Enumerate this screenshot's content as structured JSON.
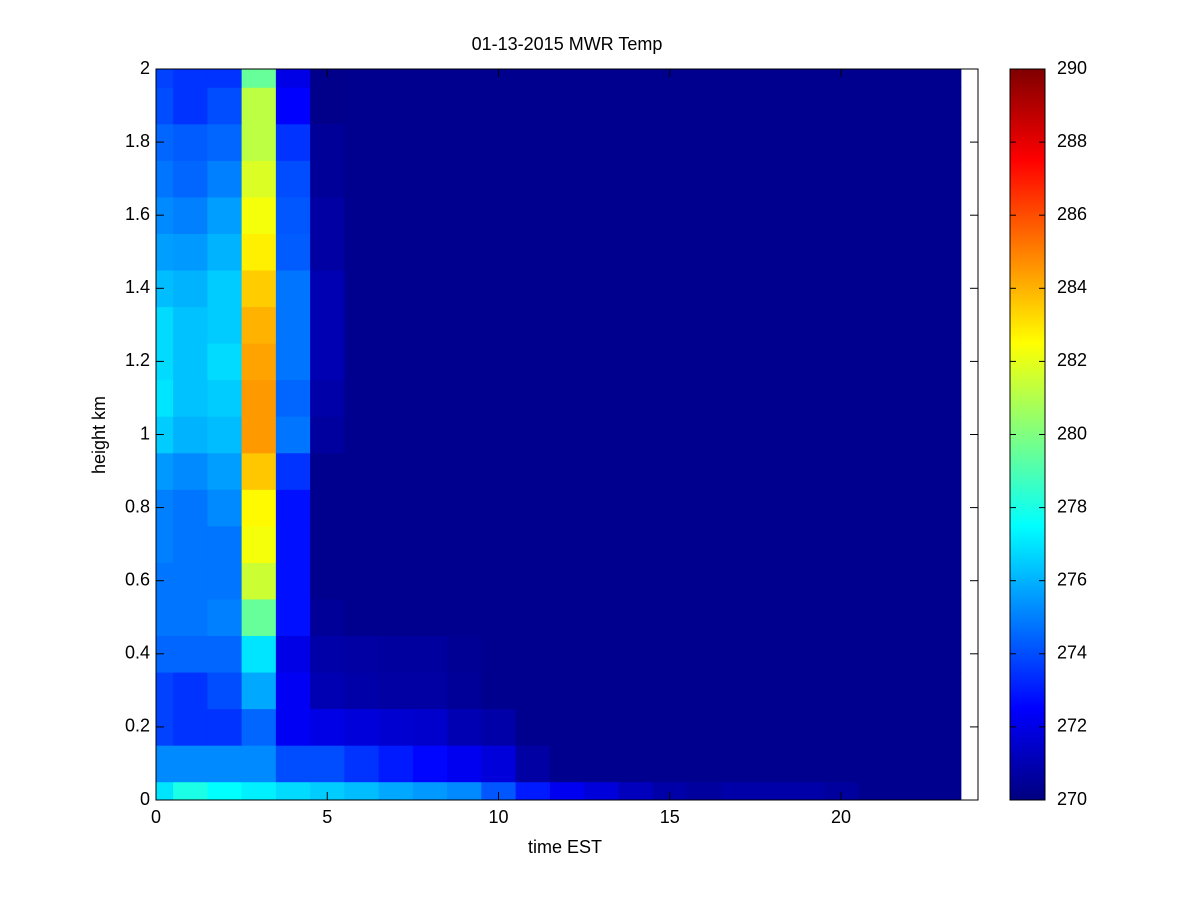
{
  "chart_data": {
    "type": "heatmap",
    "title": "01-13-2015 MWR Temp",
    "xlabel": "time EST",
    "ylabel": "height km",
    "x": [
      0,
      1,
      2,
      3,
      4,
      5,
      6,
      7,
      8,
      9,
      10,
      11,
      12,
      13,
      14,
      15,
      16,
      17,
      18,
      19,
      20,
      21,
      22,
      23
    ],
    "y": [
      0,
      0.1,
      0.2,
      0.3,
      0.4,
      0.5,
      0.6,
      0.7,
      0.8,
      0.9,
      1,
      1.1,
      1.2,
      1.3,
      1.4,
      1.5,
      1.6,
      1.7,
      1.8,
      1.9,
      2
    ],
    "z": [
      [
        277,
        278,
        277.5,
        277.2,
        276.8,
        276.5,
        276.2,
        275.8,
        275.5,
        275.2,
        274.2,
        273,
        272.2,
        271.8,
        271.2,
        270.8,
        270.6,
        270.8,
        270.8,
        270.8,
        270.6,
        270.3,
        270.3,
        270.3
      ],
      [
        275.2,
        275.2,
        275.2,
        275.2,
        274,
        274,
        273.5,
        273,
        272.6,
        272.2,
        271.8,
        270.7,
        270.3,
        270.3,
        270.3,
        270.3,
        270.3,
        270.3,
        270.3,
        270.3,
        270.3,
        270.3,
        270.3,
        270.3
      ],
      [
        273.8,
        273.5,
        273.5,
        274.5,
        272.3,
        272,
        271.8,
        271.6,
        271.5,
        271,
        270.8,
        270.3,
        270.3,
        270.3,
        270.3,
        270.3,
        270.3,
        270.3,
        270.3,
        270.3,
        270.3,
        270.3,
        270.3,
        270.3
      ],
      [
        273.8,
        273.5,
        274,
        275.8,
        272.3,
        271,
        270.8,
        270.7,
        270.7,
        270.5,
        270.3,
        270.3,
        270.3,
        270.3,
        270.3,
        270.3,
        270.3,
        270.3,
        270.3,
        270.3,
        270.3,
        270.3,
        270.3,
        270.3
      ],
      [
        274.5,
        274.5,
        274.5,
        277,
        272,
        270.8,
        270.7,
        270.6,
        270.6,
        270.4,
        270.3,
        270.3,
        270.3,
        270.3,
        270.3,
        270.3,
        270.3,
        270.3,
        270.3,
        270.3,
        270.3,
        270.3,
        270.3,
        270.3
      ],
      [
        274.8,
        274.8,
        275,
        279.5,
        272.8,
        270.5,
        270.3,
        270.3,
        270.3,
        270.3,
        270.3,
        270.3,
        270.3,
        270.3,
        270.3,
        270.3,
        270.3,
        270.3,
        270.3,
        270.3,
        270.3,
        270.3,
        270.3,
        270.3
      ],
      [
        274.8,
        274.8,
        274.8,
        281.5,
        272.8,
        270.3,
        270.3,
        270.3,
        270.3,
        270.3,
        270.3,
        270.3,
        270.3,
        270.3,
        270.3,
        270.3,
        270.3,
        270.3,
        270.3,
        270.3,
        270.3,
        270.3,
        270.3,
        270.3
      ],
      [
        275,
        274.8,
        274.8,
        282.3,
        272.8,
        270.3,
        270.3,
        270.3,
        270.3,
        270.3,
        270.3,
        270.3,
        270.3,
        270.3,
        270.3,
        270.3,
        270.3,
        270.3,
        270.3,
        270.3,
        270.3,
        270.3,
        270.3,
        270.3
      ],
      [
        275,
        274.8,
        275.2,
        282.6,
        272.8,
        270.3,
        270.3,
        270.3,
        270.3,
        270.3,
        270.3,
        270.3,
        270.3,
        270.3,
        270.3,
        270.3,
        270.3,
        270.3,
        270.3,
        270.3,
        270.3,
        270.3,
        270.3,
        270.3
      ],
      [
        275.5,
        275.2,
        275.6,
        283.6,
        273.5,
        270.3,
        270.3,
        270.3,
        270.3,
        270.3,
        270.3,
        270.3,
        270.3,
        270.3,
        270.3,
        270.3,
        270.3,
        270.3,
        270.3,
        270.3,
        270.3,
        270.3,
        270.3,
        270.3
      ],
      [
        276.5,
        276,
        276.2,
        284.5,
        274.8,
        270.6,
        270.3,
        270.3,
        270.3,
        270.3,
        270.3,
        270.3,
        270.3,
        270.3,
        270.3,
        270.3,
        270.3,
        270.3,
        270.3,
        270.3,
        270.3,
        270.3,
        270.3,
        270.3
      ],
      [
        277,
        276.3,
        276.5,
        284.5,
        274.5,
        270.8,
        270.3,
        270.3,
        270.3,
        270.3,
        270.3,
        270.3,
        270.3,
        270.3,
        270.3,
        270.3,
        270.3,
        270.3,
        270.3,
        270.3,
        270.3,
        270.3,
        270.3,
        270.3
      ],
      [
        276.8,
        276.3,
        276.8,
        284.3,
        274.8,
        271,
        270.3,
        270.3,
        270.3,
        270.3,
        270.3,
        270.3,
        270.3,
        270.3,
        270.3,
        270.3,
        270.3,
        270.3,
        270.3,
        270.3,
        270.3,
        270.3,
        270.3,
        270.3
      ],
      [
        276.8,
        276.3,
        276.5,
        284,
        274.8,
        271,
        270.3,
        270.3,
        270.3,
        270.3,
        270.3,
        270.3,
        270.3,
        270.3,
        270.3,
        270.3,
        270.3,
        270.3,
        270.3,
        270.3,
        270.3,
        270.3,
        270.3,
        270.3
      ],
      [
        276.2,
        276,
        276.5,
        283.5,
        274.8,
        271,
        270.3,
        270.3,
        270.3,
        270.3,
        270.3,
        270.3,
        270.3,
        270.3,
        270.3,
        270.3,
        270.3,
        270.3,
        270.3,
        270.3,
        270.3,
        270.3,
        270.3,
        270.3
      ],
      [
        275.6,
        275.5,
        276,
        282.8,
        274.3,
        270.7,
        270.3,
        270.3,
        270.3,
        270.3,
        270.3,
        270.3,
        270.3,
        270.3,
        270.3,
        270.3,
        270.3,
        270.3,
        270.3,
        270.3,
        270.3,
        270.3,
        270.3,
        270.3
      ],
      [
        275.2,
        275,
        275.6,
        282.3,
        274.2,
        270.7,
        270.3,
        270.3,
        270.3,
        270.3,
        270.3,
        270.3,
        270.3,
        270.3,
        270.3,
        270.3,
        270.3,
        270.3,
        270.3,
        270.3,
        270.3,
        270.3,
        270.3,
        270.3
      ],
      [
        274.8,
        274.5,
        275,
        281.8,
        274,
        270.5,
        270.3,
        270.3,
        270.3,
        270.3,
        270.3,
        270.3,
        270.3,
        270.3,
        270.3,
        270.3,
        270.3,
        270.3,
        270.3,
        270.3,
        270.3,
        270.3,
        270.3,
        270.3
      ],
      [
        274.5,
        274.3,
        274.5,
        281.2,
        273.5,
        270.5,
        270.3,
        270.3,
        270.3,
        270.3,
        270.3,
        270.3,
        270.3,
        270.3,
        270.3,
        270.3,
        270.3,
        270.3,
        270.3,
        270.3,
        270.3,
        270.3,
        270.3,
        270.3
      ],
      [
        274,
        273.5,
        274,
        281.2,
        272.5,
        270.2,
        270.3,
        270.3,
        270.3,
        270.3,
        270.3,
        270.3,
        270.3,
        270.3,
        270.3,
        270.3,
        270.3,
        270.3,
        270.3,
        270.3,
        270.3,
        270.3,
        270.3,
        270.3
      ],
      [
        273.8,
        273.5,
        273.5,
        279.5,
        272,
        270.2,
        270.3,
        270.3,
        270.3,
        270.3,
        270.3,
        270.3,
        270.3,
        270.3,
        270.3,
        270.3,
        270.3,
        270.3,
        270.3,
        270.3,
        270.3,
        270.3,
        270.3,
        270.3
      ]
    ],
    "colormap": "jet",
    "xlim": [
      0,
      24
    ],
    "xticks": [
      0,
      5,
      10,
      15,
      20
    ],
    "ylim": [
      0,
      2
    ],
    "yticks": [
      0,
      0.2,
      0.4,
      0.6,
      0.8,
      1,
      1.2,
      1.4,
      1.6,
      1.8,
      2
    ],
    "clim": [
      270,
      290
    ],
    "cticks": [
      270,
      272,
      274,
      276,
      278,
      280,
      282,
      284,
      286,
      288,
      290
    ]
  }
}
